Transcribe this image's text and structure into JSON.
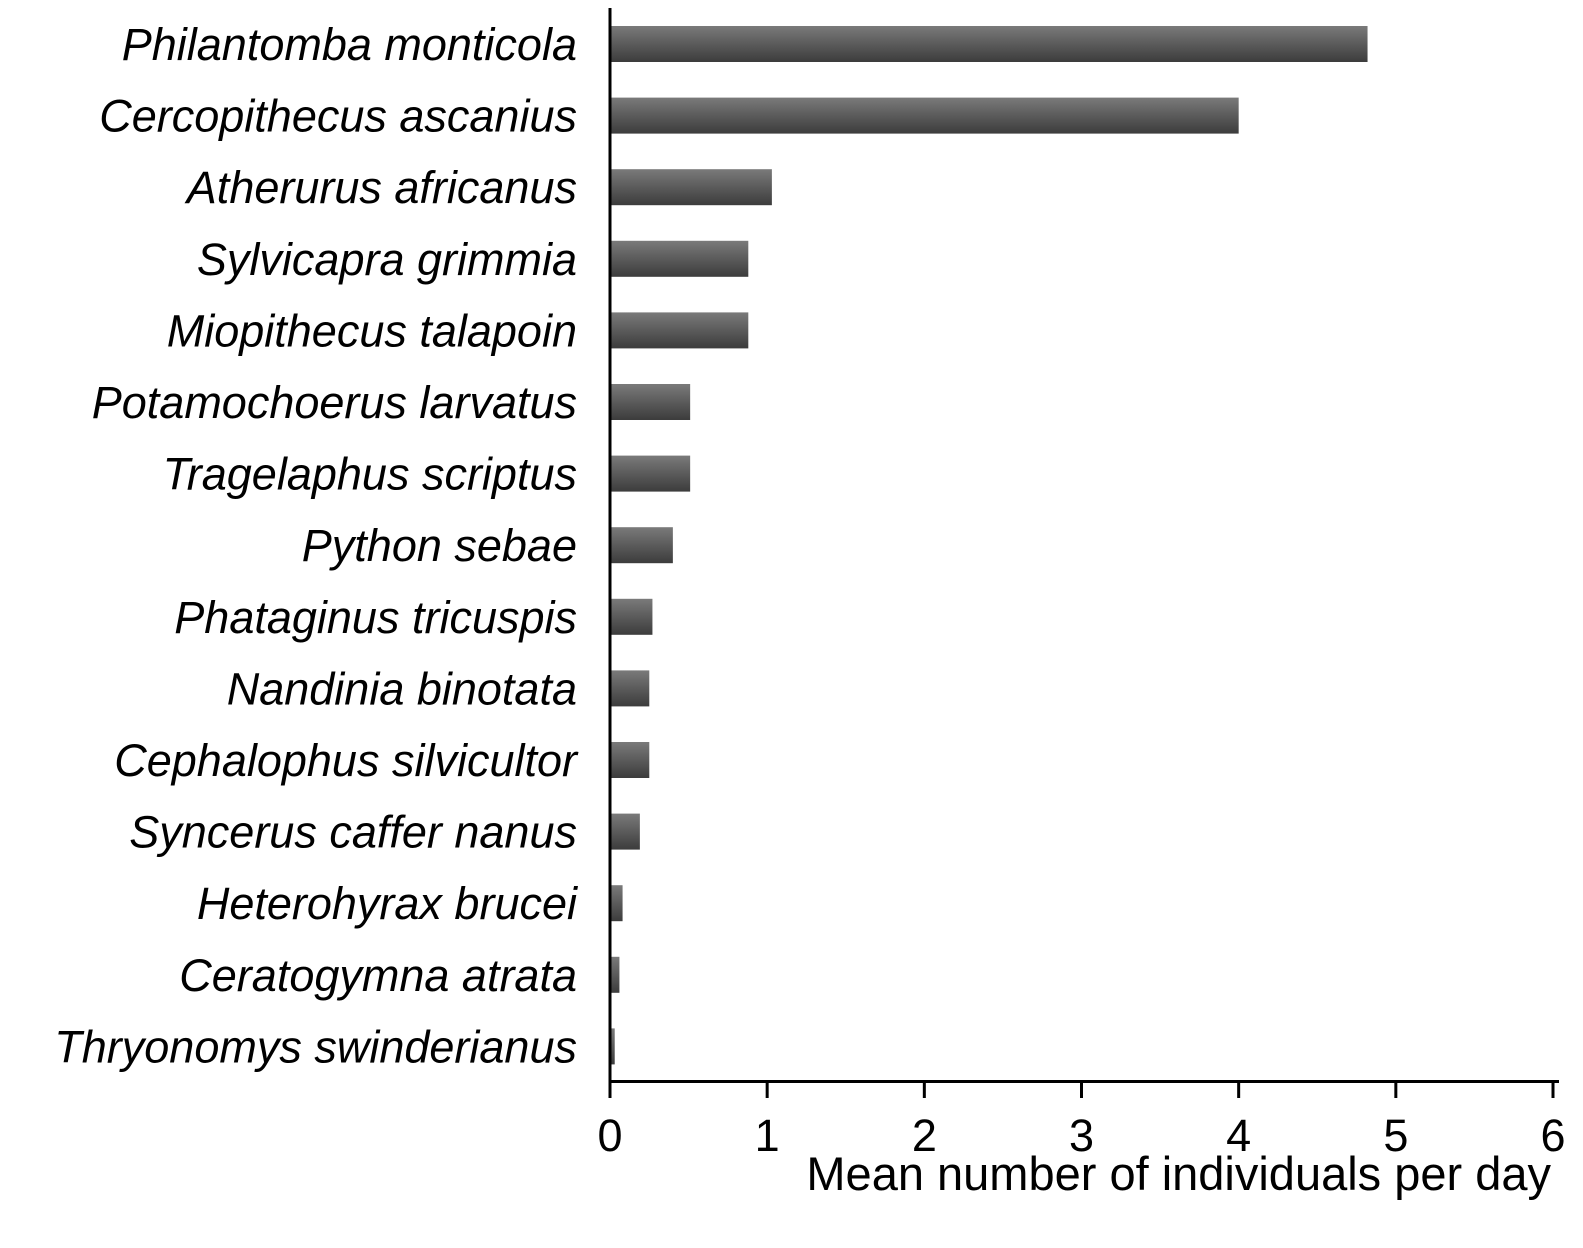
{
  "chart_data": {
    "type": "bar",
    "orientation": "horizontal",
    "categories": [
      "Philantomba monticola",
      "Cercopithecus ascanius",
      "Atherurus africanus",
      "Sylvicapra grimmia",
      "Miopithecus talapoin",
      "Potamochoerus larvatus",
      "Tragelaphus scriptus",
      "Python sebae",
      "Phataginus tricuspis",
      "Nandinia binotata",
      "Cephalophus silvicultor",
      "Syncerus caffer nanus",
      "Heterohyrax brucei",
      "Ceratogymna atrata",
      "Thryonomys swinderianus"
    ],
    "values": [
      4.82,
      4.0,
      1.03,
      0.88,
      0.88,
      0.51,
      0.51,
      0.4,
      0.27,
      0.25,
      0.25,
      0.19,
      0.08,
      0.06,
      0.03
    ],
    "xlabel": "Mean number of individuals per day",
    "ylabel": "",
    "xlim": [
      0,
      6
    ],
    "xticks": [
      "0",
      "1",
      "2",
      "3",
      "4",
      "5",
      "6"
    ],
    "grid": false,
    "bar_color": "#5a5a5a"
  }
}
